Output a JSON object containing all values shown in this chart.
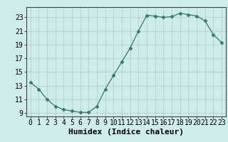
{
  "x": [
    0,
    1,
    2,
    3,
    4,
    5,
    6,
    7,
    8,
    9,
    10,
    11,
    12,
    13,
    14,
    15,
    16,
    17,
    18,
    19,
    20,
    21,
    22,
    23
  ],
  "y": [
    13.5,
    12.5,
    11.0,
    10.0,
    9.5,
    9.3,
    9.1,
    9.1,
    10.0,
    12.5,
    14.5,
    16.5,
    18.5,
    21.0,
    23.3,
    23.2,
    23.0,
    23.1,
    23.6,
    23.4,
    23.2,
    22.5,
    20.5,
    19.3
  ],
  "line_color": "#2e7d6e",
  "marker": "D",
  "marker_size": 2.5,
  "bg_color": "#cdecea",
  "grid_color": "#b8d8d6",
  "xlabel": "Humidex (Indice chaleur)",
  "xlabel_fontsize": 8,
  "tick_fontsize": 7,
  "ylim": [
    8.5,
    24.5
  ],
  "xlim": [
    -0.5,
    23.5
  ],
  "yticks": [
    9,
    11,
    13,
    15,
    17,
    19,
    21,
    23
  ],
  "xticks": [
    0,
    1,
    2,
    3,
    4,
    5,
    6,
    7,
    8,
    9,
    10,
    11,
    12,
    13,
    14,
    15,
    16,
    17,
    18,
    19,
    20,
    21,
    22,
    23
  ]
}
